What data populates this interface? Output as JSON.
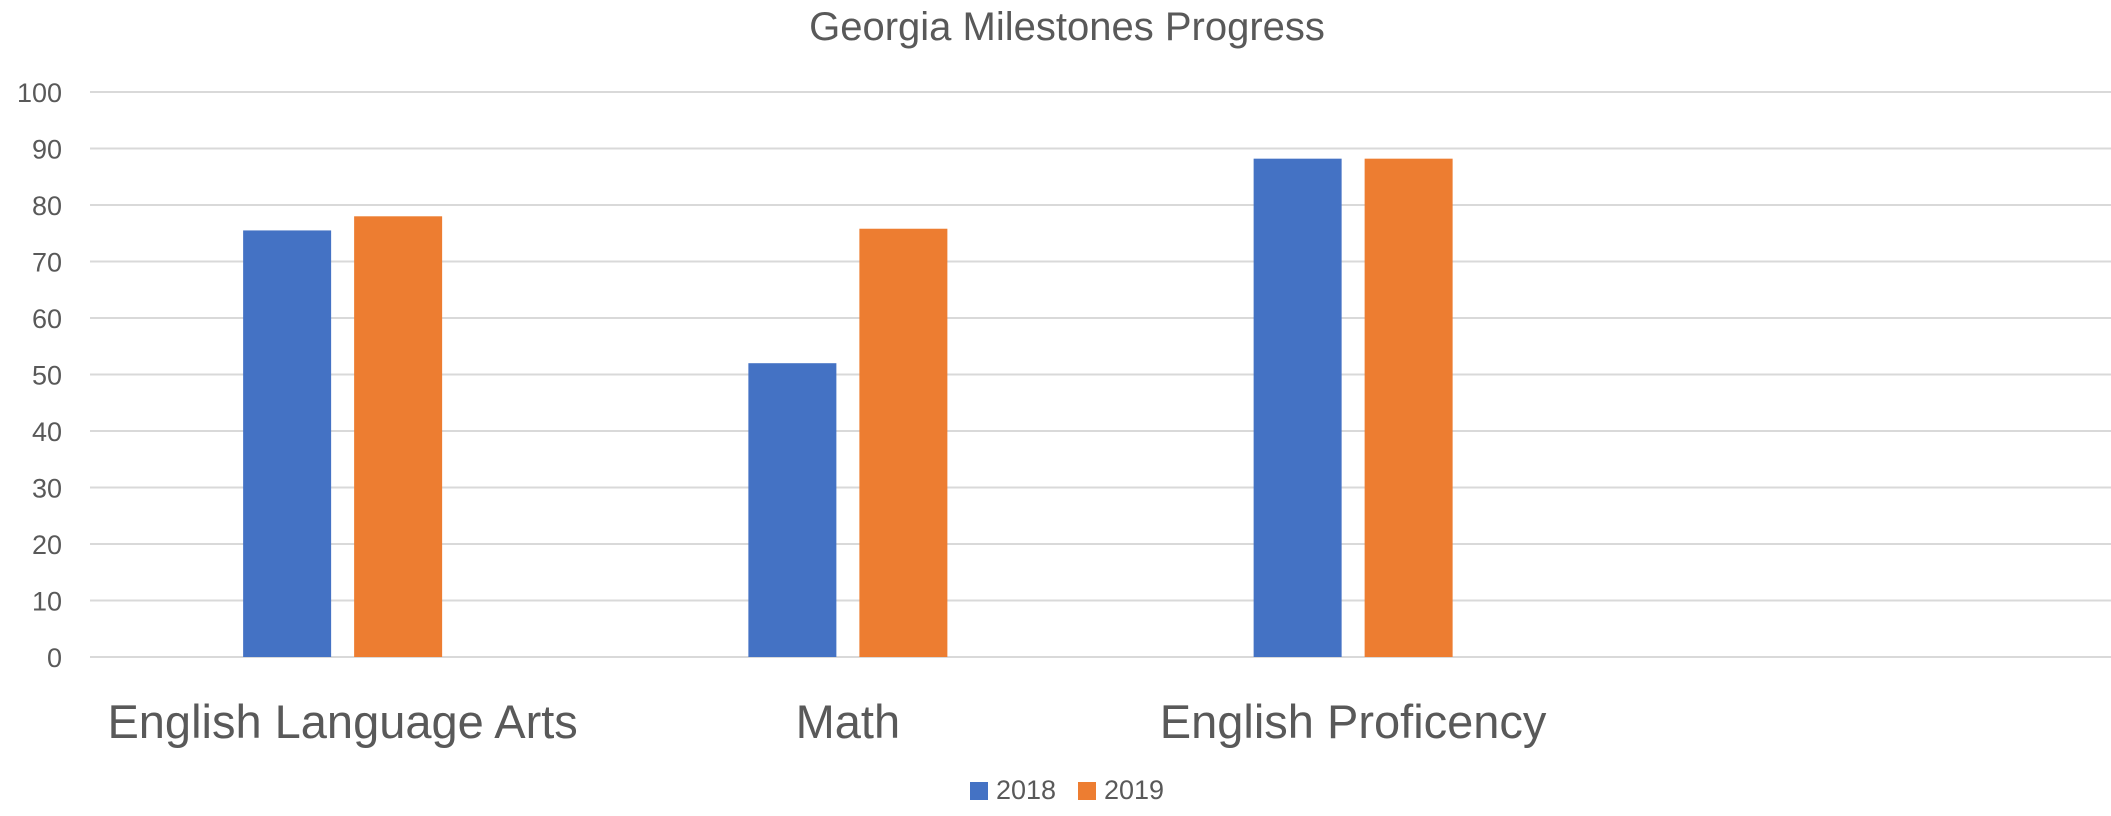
{
  "chart_data": {
    "type": "bar",
    "title": "Georgia Milestones Progress",
    "categories": [
      "English Language Arts",
      "Math",
      "English Proficency",
      ""
    ],
    "series": [
      {
        "name": "2018",
        "color": "#4472C4",
        "values": [
          75.5,
          52,
          88.2,
          null
        ]
      },
      {
        "name": "2019",
        "color": "#ED7D31",
        "values": [
          78,
          75.8,
          88.2,
          null
        ]
      }
    ],
    "ylim": [
      0,
      100
    ],
    "yticks": [
      0,
      10,
      20,
      30,
      40,
      50,
      60,
      70,
      80,
      90,
      100
    ],
    "grid": true,
    "gridline_color": "#D9D9D9",
    "legend_placement": "bottom"
  }
}
